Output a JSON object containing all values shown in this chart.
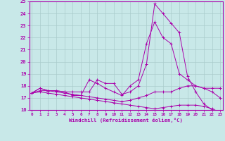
{
  "xlabel": "Windchill (Refroidissement éolien,°C)",
  "background_color": "#c8e8e8",
  "grid_color": "#aacccc",
  "line_color": "#aa00aa",
  "xmin": 0,
  "xmax": 23,
  "ymin": 16,
  "ymax": 25,
  "hours": [
    0,
    1,
    2,
    3,
    4,
    5,
    6,
    7,
    8,
    9,
    10,
    11,
    12,
    13,
    14,
    15,
    16,
    17,
    18,
    19,
    20,
    21,
    22,
    23
  ],
  "series": [
    [
      17.4,
      17.8,
      17.6,
      17.6,
      17.5,
      17.5,
      17.5,
      17.5,
      18.5,
      18.2,
      18.2,
      17.3,
      17.5,
      18.0,
      19.8,
      24.8,
      24.0,
      23.2,
      22.4,
      18.8,
      17.5,
      16.5,
      16.0,
      15.8
    ],
    [
      17.4,
      17.8,
      17.6,
      17.6,
      17.5,
      17.2,
      17.2,
      18.5,
      18.2,
      17.8,
      17.5,
      17.2,
      18.0,
      18.5,
      21.5,
      23.3,
      22.0,
      21.5,
      19.0,
      18.5,
      18.0,
      17.8,
      17.8,
      17.8
    ],
    [
      17.4,
      17.6,
      17.6,
      17.5,
      17.4,
      17.3,
      17.2,
      17.1,
      17.0,
      16.9,
      16.8,
      16.7,
      16.8,
      17.0,
      17.2,
      17.5,
      17.5,
      17.5,
      17.8,
      18.0,
      18.0,
      17.8,
      17.5,
      17.0
    ],
    [
      17.4,
      17.5,
      17.4,
      17.3,
      17.2,
      17.1,
      17.0,
      16.9,
      16.8,
      16.7,
      16.6,
      16.5,
      16.4,
      16.3,
      16.2,
      16.1,
      16.2,
      16.3,
      16.4,
      16.4,
      16.4,
      16.3,
      16.1,
      15.8
    ]
  ]
}
